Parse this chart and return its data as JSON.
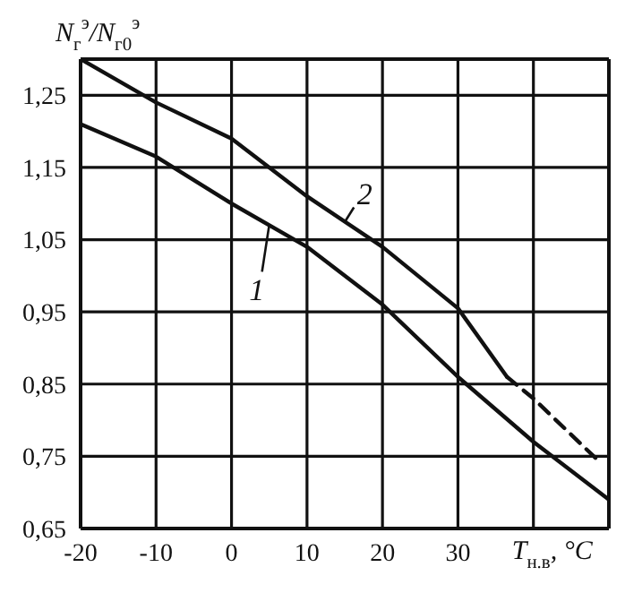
{
  "chart_data": {
    "type": "line",
    "ylabel": "N$_{г}$$^{э}$/N$_{г0}$$^{э}$",
    "xlabel": "T$_{н.в}$, °C",
    "xlim": [
      -20,
      50
    ],
    "ylim": [
      0.65,
      1.3
    ],
    "xticks": [
      -20,
      -10,
      0,
      10,
      20,
      30,
      {
        "value": 40,
        "label": null
      }
    ],
    "yticks": [
      {
        "value": 0.65,
        "label": "0,65"
      },
      {
        "value": 0.75,
        "label": "0,75"
      },
      {
        "value": 0.85,
        "label": "0,85"
      },
      {
        "value": 0.95,
        "label": "0,95"
      },
      {
        "value": 1.05,
        "label": "1,05"
      },
      {
        "value": 1.15,
        "label": "1,15"
      },
      {
        "value": 1.25,
        "label": "1,25"
      }
    ],
    "grid": true,
    "marker": "none",
    "series": [
      {
        "name": "1",
        "color": "#111111",
        "x": [
          -20,
          -10,
          0,
          10,
          20,
          30,
          40,
          50
        ],
        "values": [
          1.21,
          1.165,
          1.1,
          1.04,
          0.96,
          0.86,
          0.77,
          0.69
        ]
      },
      {
        "name": "2",
        "color": "#111111",
        "x": [
          -20,
          -10,
          0,
          10,
          20,
          30,
          36.5
        ],
        "values": [
          1.3,
          1.24,
          1.19,
          1.11,
          1.04,
          0.955,
          0.86
        ]
      },
      {
        "color": "#111111",
        "line_style": "dashed",
        "x": [
          36.5,
          40,
          49
        ],
        "values": [
          0.86,
          0.83,
          0.74
        ]
      }
    ]
  }
}
